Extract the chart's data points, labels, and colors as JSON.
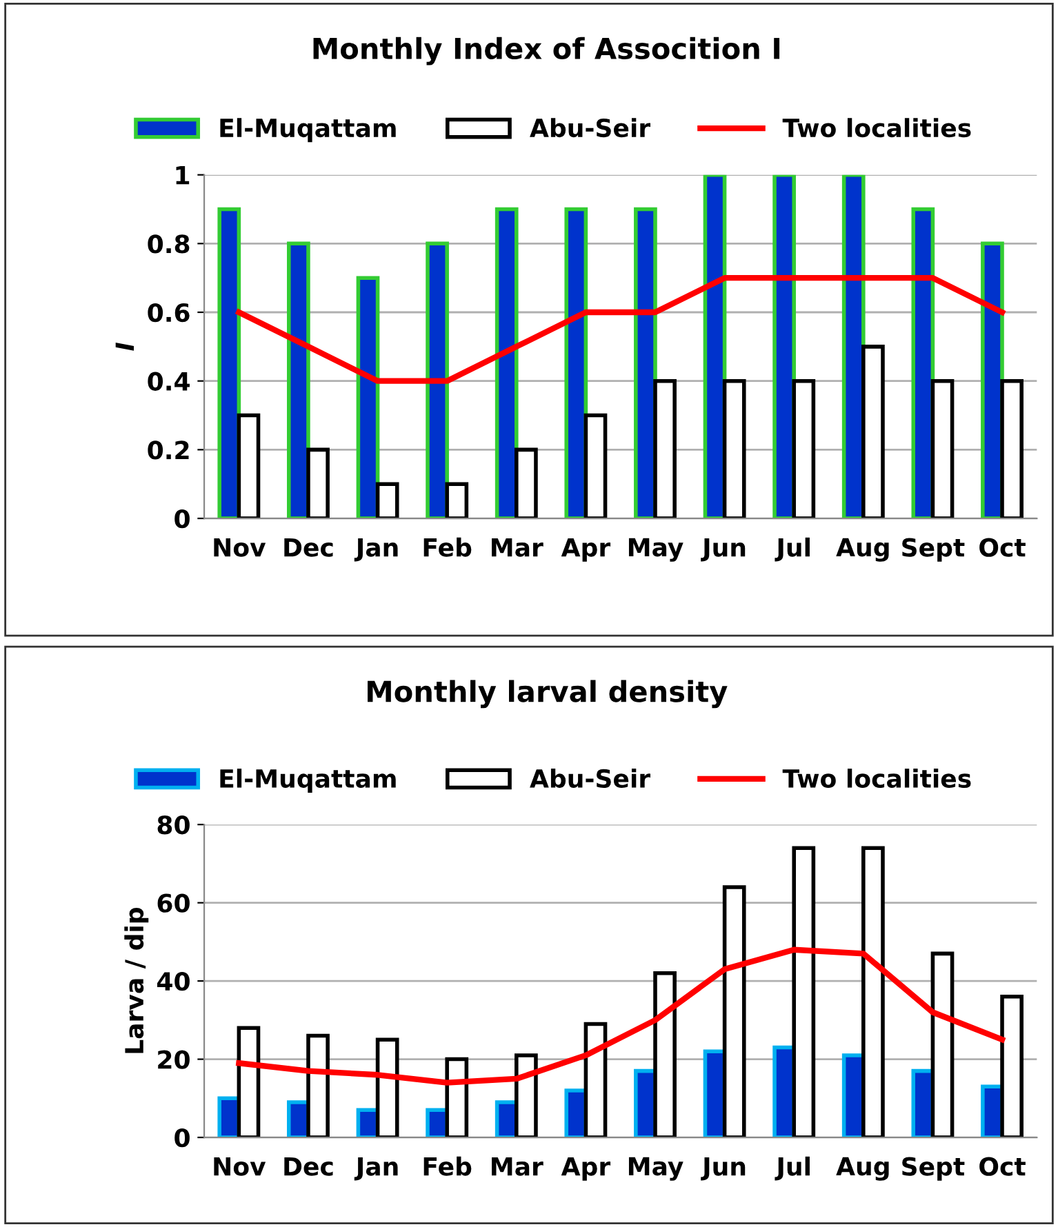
{
  "chart_data": [
    {
      "type": "bar",
      "title": "Monthly Index of Assocition I",
      "ylabel": "I",
      "categories": [
        "Nov",
        "Dec",
        "Jan",
        "Feb",
        "Mar",
        "Apr",
        "May",
        "Jun",
        "Jul",
        "Aug",
        "Sept",
        "Oct"
      ],
      "series": [
        {
          "name": "El-Muqattam",
          "color": "#0033cc",
          "values": [
            0.9,
            0.8,
            0.7,
            0.8,
            0.9,
            0.9,
            0.9,
            1,
            1,
            1,
            0.9,
            0.8
          ]
        },
        {
          "name": "Abu-Seir",
          "color": "#ffffff",
          "values": [
            0.3,
            0.2,
            0.1,
            0.1,
            0.2,
            0.3,
            0.4,
            0.4,
            0.4,
            0.5,
            0.4,
            0.4
          ]
        },
        {
          "name": "Two localities",
          "type": "line",
          "color": "#ff0000",
          "values": [
            0.6,
            0.5,
            0.4,
            0.4,
            0.5,
            0.6,
            0.6,
            0.7,
            0.7,
            0.7,
            0.7,
            0.6
          ]
        }
      ],
      "ylim": [
        0,
        1
      ],
      "yticks": [
        0,
        0.2,
        0.4,
        0.6,
        0.8,
        1
      ],
      "grid": "y",
      "legend": "top",
      "marker": "none"
    },
    {
      "type": "bar",
      "title": "Monthly larval density",
      "ylabel": "Larva / dip",
      "categories": [
        "Nov",
        "Dec",
        "Jan",
        "Feb",
        "Mar",
        "Apr",
        "May",
        "Jun",
        "Jul",
        "Aug",
        "Sept",
        "Oct"
      ],
      "series": [
        {
          "name": "El-Muqattam",
          "color": "#0033cc",
          "values": [
            10,
            9,
            7,
            7,
            9,
            12,
            17,
            22,
            23,
            21,
            17,
            13
          ]
        },
        {
          "name": "Abu-Seir",
          "color": "#ffffff",
          "values": [
            28,
            26,
            25,
            20,
            21,
            29,
            42,
            64,
            74,
            74,
            47,
            36
          ]
        },
        {
          "name": "Two localities",
          "type": "line",
          "color": "#ff0000",
          "values": [
            19,
            17,
            16,
            14,
            15,
            21,
            30,
            43,
            48,
            47,
            32,
            25
          ]
        }
      ],
      "ylim": [
        0,
        80
      ],
      "yticks": [
        0,
        20,
        40,
        60,
        80
      ],
      "grid": "y",
      "legend": "top",
      "marker": "none"
    }
  ]
}
